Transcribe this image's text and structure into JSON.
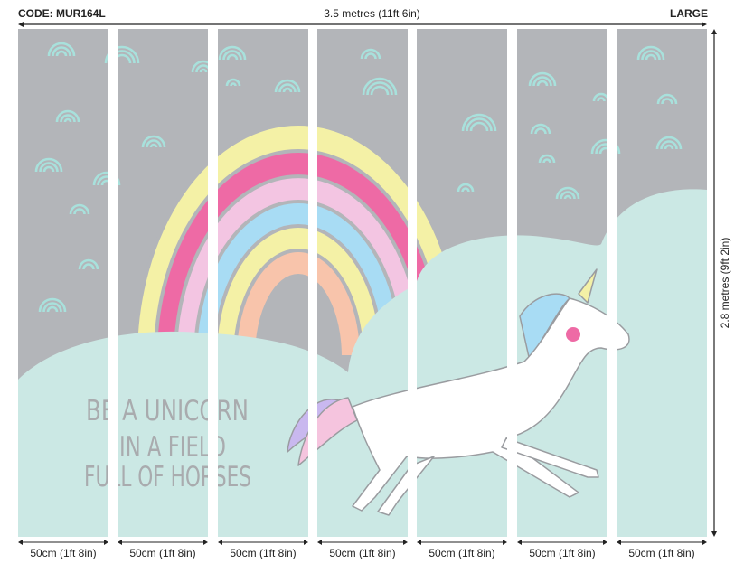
{
  "header": {
    "code": "CODE: MUR164L",
    "width_label": "3.5 metres (11ft 6in)",
    "size": "LARGE"
  },
  "height_label": "2.8 metres (9ft 2in)",
  "panels": [
    {
      "label": "50cm (1ft 8in)"
    },
    {
      "label": "50cm (1ft 8in)"
    },
    {
      "label": "50cm (1ft 8in)"
    },
    {
      "label": "50cm (1ft 8in)"
    },
    {
      "label": "50cm (1ft 8in)"
    },
    {
      "label": "50cm (1ft 8in)"
    },
    {
      "label": "50cm (1ft 8in)"
    }
  ],
  "artwork": {
    "text_lines": [
      "BE A UNICORN",
      "IN A FIELD",
      "FULL OF HORSES"
    ],
    "colors": {
      "sky": "#b3b5b9",
      "hill": "#cbe8e4",
      "small_rainbows": "#a8e1dc",
      "text": "#a9abae"
    },
    "rainbow_colors": [
      "#f4f1a6",
      "#ee6aa5",
      "#f3c5e2",
      "#a8dcf4",
      "#f4f1a6",
      "#f8c4ab"
    ]
  }
}
